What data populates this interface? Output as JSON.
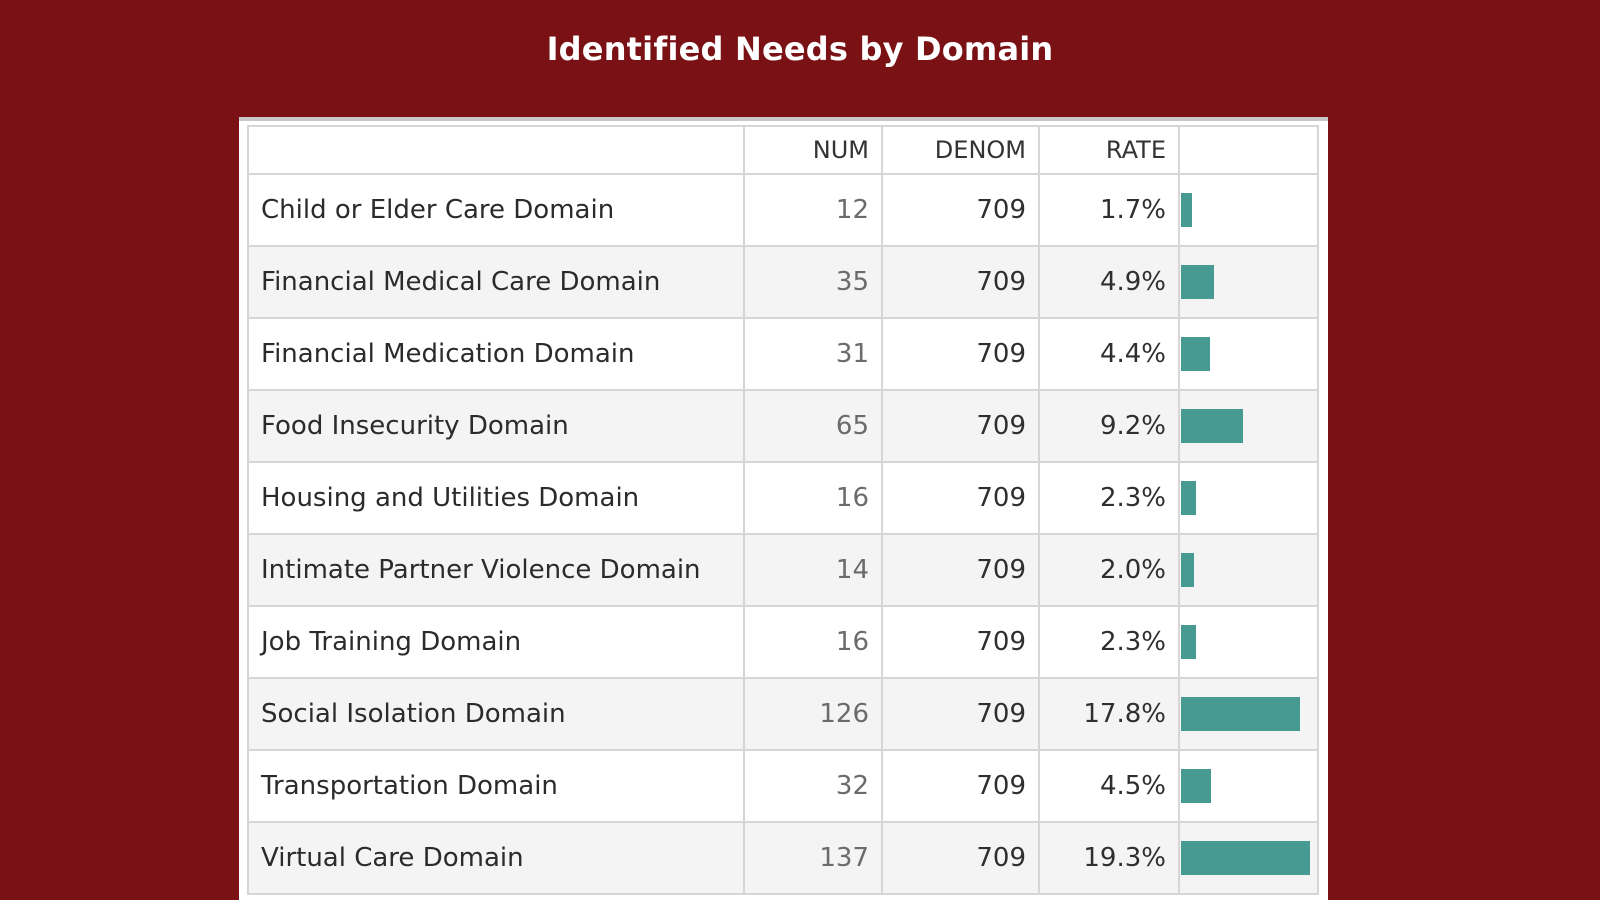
{
  "page": {
    "title": "Identified Needs by Domain"
  },
  "colors": {
    "background": "#7a1215",
    "bar": "#479a92",
    "title": "#ffffff"
  },
  "chart_data": {
    "type": "table",
    "title": "Identified Needs by Domain",
    "columns": [
      "",
      "NUM",
      "DENOM",
      "RATE"
    ],
    "rows": [
      {
        "domain": "Child or Elder Care Domain",
        "num": "12",
        "denom": "709",
        "rate": "1.7%",
        "rate_value": 1.7
      },
      {
        "domain": "Financial Medical Care Domain",
        "num": "35",
        "denom": "709",
        "rate": "4.9%",
        "rate_value": 4.9
      },
      {
        "domain": "Financial Medication Domain",
        "num": "31",
        "denom": "709",
        "rate": "4.4%",
        "rate_value": 4.4
      },
      {
        "domain": "Food Insecurity Domain",
        "num": "65",
        "denom": "709",
        "rate": "9.2%",
        "rate_value": 9.2
      },
      {
        "domain": "Housing and Utilities Domain",
        "num": "16",
        "denom": "709",
        "rate": "2.3%",
        "rate_value": 2.3
      },
      {
        "domain": "Intimate Partner Violence Domain",
        "num": "14",
        "denom": "709",
        "rate": "2.0%",
        "rate_value": 2.0
      },
      {
        "domain": "Job Training Domain",
        "num": "16",
        "denom": "709",
        "rate": "2.3%",
        "rate_value": 2.3
      },
      {
        "domain": "Social Isolation Domain",
        "num": "126",
        "denom": "709",
        "rate": "17.8%",
        "rate_value": 17.8
      },
      {
        "domain": "Transportation Domain",
        "num": "32",
        "denom": "709",
        "rate": "4.5%",
        "rate_value": 4.5
      },
      {
        "domain": "Virtual Care Domain",
        "num": "137",
        "denom": "709",
        "rate": "19.3%",
        "rate_value": 19.3
      }
    ],
    "bar_axis": {
      "min": 0,
      "max": 20
    }
  }
}
